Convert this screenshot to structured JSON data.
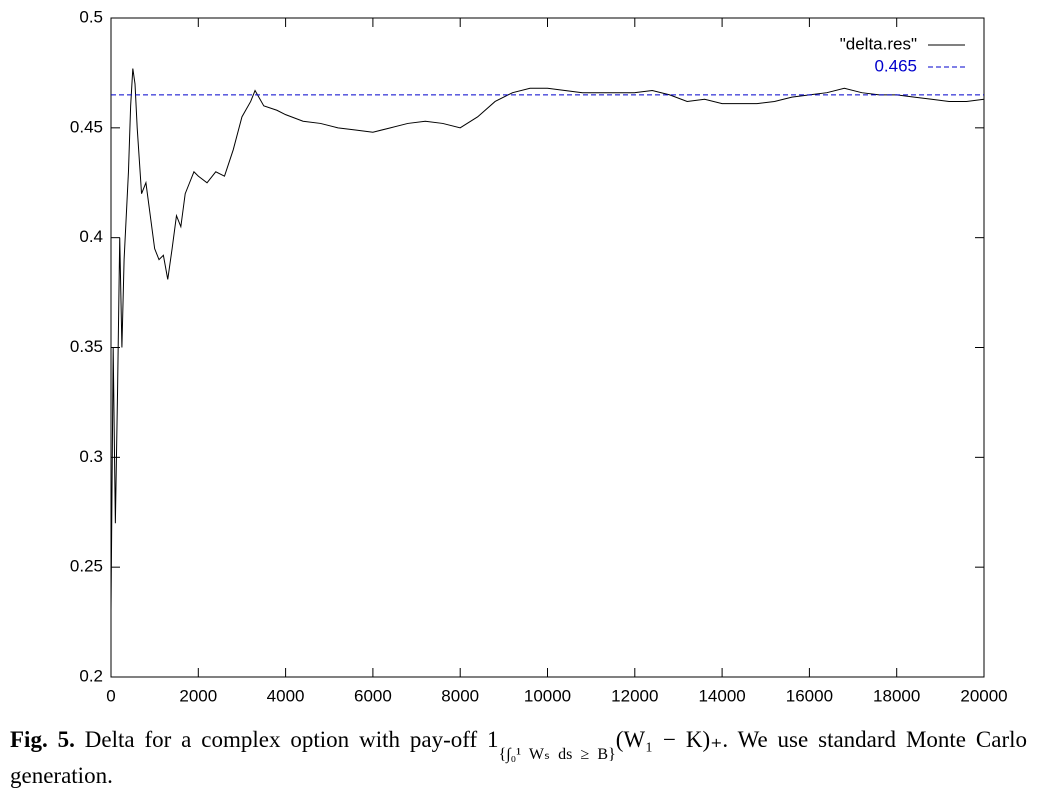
{
  "chart_data": {
    "type": "line",
    "xlim": [
      0,
      20000
    ],
    "xticks": [
      0,
      2000,
      4000,
      6000,
      8000,
      10000,
      12000,
      14000,
      16000,
      18000,
      20000
    ],
    "ylim": [
      0.2,
      0.5
    ],
    "yticks": [
      0.2,
      0.25,
      0.3,
      0.35,
      0.4,
      0.45,
      0.5
    ],
    "legend": "top-right",
    "series": [
      {
        "name": "\"delta.res\"",
        "color": "#000000",
        "dash": false,
        "x": [
          0,
          50,
          100,
          150,
          200,
          250,
          300,
          400,
          450,
          500,
          550,
          600,
          700,
          800,
          900,
          1000,
          1100,
          1200,
          1300,
          1400,
          1500,
          1600,
          1700,
          1800,
          1900,
          2000,
          2200,
          2400,
          2600,
          2800,
          3000,
          3200,
          3300,
          3500,
          3800,
          4000,
          4400,
          4800,
          5200,
          5600,
          6000,
          6400,
          6800,
          7200,
          7600,
          8000,
          8400,
          8800,
          9200,
          9600,
          10000,
          10400,
          10800,
          11200,
          11600,
          12000,
          12400,
          12800,
          13200,
          13600,
          14000,
          14400,
          14800,
          15200,
          15600,
          16000,
          16400,
          16800,
          17200,
          17600,
          18000,
          18400,
          18800,
          19200,
          19600,
          20000
        ],
        "values": [
          0.23,
          0.35,
          0.27,
          0.33,
          0.4,
          0.35,
          0.39,
          0.43,
          0.46,
          0.477,
          0.47,
          0.45,
          0.42,
          0.425,
          0.41,
          0.395,
          0.39,
          0.392,
          0.381,
          0.395,
          0.41,
          0.405,
          0.42,
          0.425,
          0.43,
          0.428,
          0.425,
          0.43,
          0.428,
          0.44,
          0.455,
          0.462,
          0.467,
          0.46,
          0.458,
          0.456,
          0.453,
          0.452,
          0.45,
          0.449,
          0.448,
          0.45,
          0.452,
          0.453,
          0.452,
          0.45,
          0.455,
          0.462,
          0.466,
          0.468,
          0.468,
          0.467,
          0.466,
          0.466,
          0.466,
          0.466,
          0.467,
          0.465,
          0.462,
          0.463,
          0.461,
          0.461,
          0.461,
          0.462,
          0.464,
          0.465,
          0.466,
          0.468,
          0.466,
          0.465,
          0.465,
          0.464,
          0.463,
          0.462,
          0.462,
          0.463
        ]
      },
      {
        "name": "0.465",
        "color": "#0000cc",
        "dash": true,
        "x": [
          0,
          20000
        ],
        "values": [
          0.465,
          0.465
        ]
      }
    ]
  },
  "caption": {
    "label": "Fig. 5.",
    "text1": "Delta for a complex option with pay-off 1",
    "sub": "{∫₀¹ Wₛ ds ≥ B}",
    "text2": "(W₁ − K)₊. We use standard Monte Carlo generation."
  }
}
